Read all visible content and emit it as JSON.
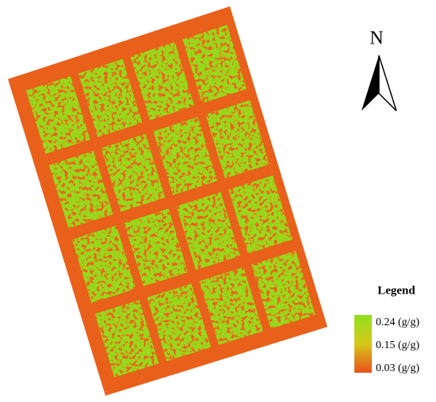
{
  "north_label": "N",
  "legend": {
    "title": "Legend",
    "labels": [
      "0.24 (g/g)",
      "0.15 (g/g)",
      "0.03 (g/g)"
    ]
  }
}
